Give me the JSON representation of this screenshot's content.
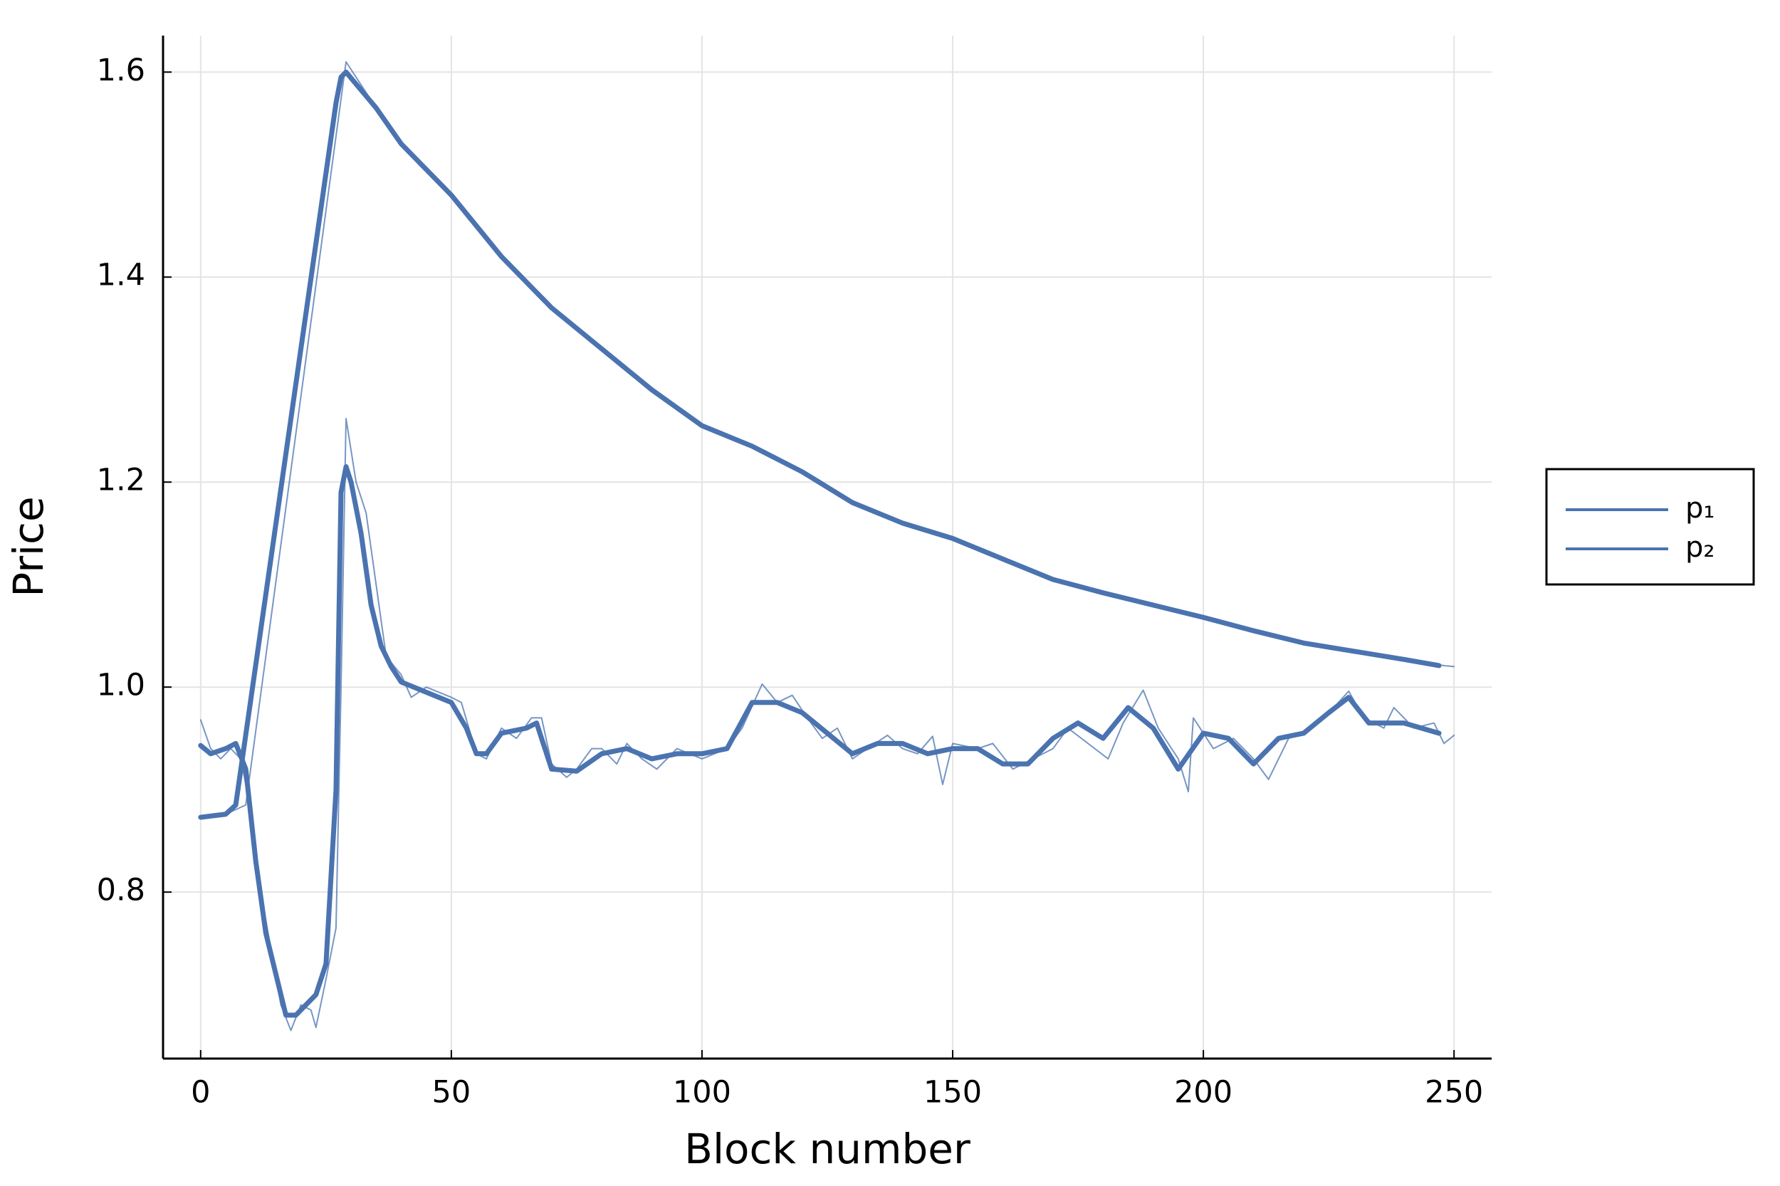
{
  "chart_data": {
    "type": "line",
    "xlabel": "Block number",
    "ylabel": "Price",
    "xlim": [
      -7.5,
      257.5
    ],
    "ylim": [
      0.6376,
      1.6356
    ],
    "xticks": [
      0,
      50,
      100,
      150,
      200,
      250
    ],
    "yticks": [
      0.8,
      {
        "value": 1,
        "label": "1.0"
      },
      1.2,
      1.4,
      1.6
    ],
    "grid": true,
    "legend": "right",
    "series": [
      {
        "name": "p₁",
        "color": "#4a73b0",
        "linewidth": 2,
        "x": [
          0,
          5,
          9,
          29,
          35,
          40,
          50,
          60,
          70,
          80,
          90,
          100,
          110,
          120,
          130,
          140,
          150,
          160,
          170,
          180,
          190,
          200,
          210,
          220,
          230,
          240,
          248,
          250
        ],
        "values": [
          0.873,
          0.876,
          0.885,
          1.61,
          1.565,
          1.53,
          1.48,
          1.42,
          1.37,
          1.33,
          1.29,
          1.255,
          1.235,
          1.21,
          1.18,
          1.16,
          1.145,
          1.125,
          1.105,
          1.092,
          1.08,
          1.068,
          1.055,
          1.043,
          1.035,
          1.027,
          1.021,
          1.02
        ]
      },
      {
        "name": "p₂",
        "color": "#4a73b0",
        "linewidth": 2,
        "x": [
          0,
          2,
          4,
          6,
          8,
          10,
          12,
          14,
          16,
          18,
          20,
          22,
          23,
          25,
          27,
          28,
          29,
          31,
          33,
          35,
          37,
          40,
          42,
          45,
          50,
          52,
          55,
          57,
          60,
          63,
          66,
          68,
          70,
          73,
          75,
          78,
          80,
          83,
          85,
          88,
          91,
          95,
          100,
          105,
          108,
          112,
          115,
          118,
          121,
          124,
          127,
          130,
          133,
          137,
          140,
          143,
          146,
          148,
          150,
          155,
          158,
          162,
          166,
          170,
          173,
          177,
          181,
          184,
          188,
          191,
          195,
          197,
          198,
          202,
          206,
          210,
          213,
          217,
          221,
          226,
          229,
          232,
          236,
          238,
          242,
          246,
          248,
          250
        ],
        "values": [
          0.968,
          0.94,
          0.93,
          0.94,
          0.93,
          0.88,
          0.8,
          0.745,
          0.69,
          0.665,
          0.69,
          0.685,
          0.668,
          0.715,
          0.765,
          1.0,
          1.262,
          1.2,
          1.17,
          1.1,
          1.03,
          1.012,
          0.99,
          1.0,
          0.99,
          0.985,
          0.935,
          0.93,
          0.96,
          0.95,
          0.97,
          0.97,
          0.925,
          0.912,
          0.92,
          0.94,
          0.94,
          0.925,
          0.945,
          0.93,
          0.92,
          0.94,
          0.93,
          0.94,
          0.96,
          1.003,
          0.985,
          0.992,
          0.97,
          0.95,
          0.96,
          0.93,
          0.94,
          0.953,
          0.94,
          0.935,
          0.952,
          0.905,
          0.945,
          0.94,
          0.945,
          0.92,
          0.93,
          0.94,
          0.96,
          0.945,
          0.93,
          0.965,
          0.997,
          0.96,
          0.93,
          0.898,
          0.97,
          0.94,
          0.95,
          0.93,
          0.91,
          0.95,
          0.958,
          0.98,
          0.996,
          0.97,
          0.96,
          0.98,
          0.96,
          0.965,
          0.945,
          0.953
        ]
      },
      {
        "color": "#4a73b0",
        "linewidth": 7,
        "x": [
          0,
          5,
          7,
          27,
          28,
          29,
          35,
          40,
          50,
          60,
          70,
          80,
          90,
          100,
          110,
          120,
          130,
          140,
          150,
          160,
          170,
          180,
          190,
          200,
          210,
          220,
          230,
          240,
          247
        ],
        "values": [
          0.873,
          0.876,
          0.885,
          1.57,
          1.595,
          1.6,
          1.565,
          1.53,
          1.48,
          1.42,
          1.37,
          1.33,
          1.29,
          1.255,
          1.235,
          1.21,
          1.18,
          1.16,
          1.145,
          1.125,
          1.105,
          1.092,
          1.08,
          1.068,
          1.055,
          1.043,
          1.035,
          1.027,
          1.021
        ]
      },
      {
        "color": "#4a73b0",
        "linewidth": 7,
        "x": [
          0,
          2,
          5,
          7,
          9,
          11,
          13,
          15,
          17,
          19,
          21,
          23,
          25,
          27,
          28,
          29,
          30,
          32,
          34,
          36,
          38,
          40,
          45,
          50,
          53,
          55,
          57,
          60,
          65,
          67,
          70,
          75,
          80,
          85,
          90,
          95,
          100,
          105,
          110,
          115,
          120,
          125,
          130,
          135,
          140,
          145,
          150,
          155,
          160,
          165,
          170,
          175,
          180,
          185,
          190,
          195,
          200,
          205,
          210,
          215,
          220,
          225,
          229,
          233,
          240,
          247
        ],
        "values": [
          0.943,
          0.935,
          0.94,
          0.945,
          0.92,
          0.83,
          0.76,
          0.72,
          0.68,
          0.68,
          0.69,
          0.7,
          0.73,
          0.9,
          1.19,
          1.215,
          1.2,
          1.15,
          1.08,
          1.04,
          1.02,
          1.005,
          0.995,
          0.985,
          0.96,
          0.935,
          0.935,
          0.955,
          0.96,
          0.965,
          0.92,
          0.918,
          0.935,
          0.94,
          0.93,
          0.935,
          0.935,
          0.94,
          0.985,
          0.985,
          0.975,
          0.955,
          0.935,
          0.945,
          0.945,
          0.935,
          0.94,
          0.94,
          0.925,
          0.925,
          0.95,
          0.965,
          0.95,
          0.98,
          0.96,
          0.92,
          0.955,
          0.95,
          0.925,
          0.95,
          0.955,
          0.975,
          0.99,
          0.965,
          0.965,
          0.955
        ]
      }
    ]
  }
}
